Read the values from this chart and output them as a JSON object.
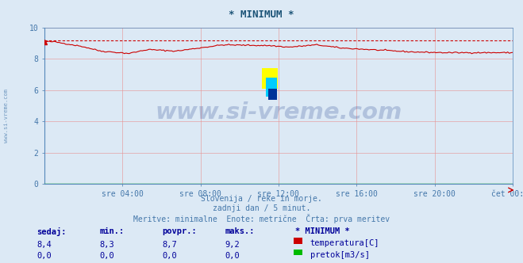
{
  "title": "* MINIMUM *",
  "title_color": "#1a5276",
  "bg_color": "#dce9f5",
  "plot_bg_color": "#dce9f5",
  "grid_color": "#e89090",
  "axis_color": "#5588bb",
  "tick_color": "#5588bb",
  "tick_labels_color": "#4477aa",
  "x_tick_labels": [
    "sre 04:00",
    "sre 08:00",
    "sre 12:00",
    "sre 16:00",
    "sre 20:00",
    "čet 00:00"
  ],
  "ylim": [
    0,
    10
  ],
  "yticks": [
    0,
    2,
    4,
    6,
    8,
    10
  ],
  "temp_line_color": "#cc0000",
  "temp_dotted_color": "#cc0000",
  "flow_line_color": "#00bb00",
  "watermark_text": "www.si-vreme.com",
  "watermark_color": "#1a3a8a",
  "subtitle1": "Slovenija / reke in morje.",
  "subtitle2": "zadnji dan / 5 minut.",
  "subtitle3": "Meritve: minimalne  Enote: metrične  Črta: prva meritev",
  "subtitle_color": "#4477aa",
  "legend_header": "* MINIMUM *",
  "legend_items": [
    "temperatura[C]",
    "pretok[m3/s]"
  ],
  "legend_colors": [
    "#cc0000",
    "#00bb00"
  ],
  "stats_headers": [
    "sedaj:",
    "min.:",
    "povpr.:",
    "maks.:"
  ],
  "stats_temp": [
    "8,4",
    "8,3",
    "8,7",
    "9,2"
  ],
  "stats_flow": [
    "0,0",
    "0,0",
    "0,0",
    "0,0"
  ],
  "temp_max_line": 9.2,
  "n_points": 288,
  "left_label": "www.si-vreme.com",
  "left_label_color": "#4477aa"
}
